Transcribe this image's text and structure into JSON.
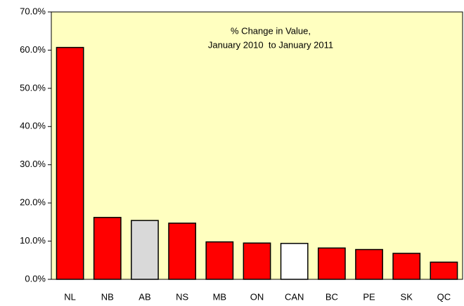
{
  "chart_data": {
    "type": "bar",
    "title": [
      "% Change in Value,",
      "January 2010  to January 2011"
    ],
    "categories": [
      "NL",
      "NB",
      "AB",
      "NS",
      "MB",
      "ON",
      "CAN",
      "BC",
      "PE",
      "SK",
      "QC"
    ],
    "values": [
      60.7,
      16.2,
      15.4,
      14.7,
      9.8,
      9.5,
      9.4,
      8.2,
      7.8,
      6.8,
      4.5
    ],
    "colors": [
      "#ff0000",
      "#ff0000",
      "#d9d9d9",
      "#ff0000",
      "#ff0000",
      "#ff0000",
      "#ffffff",
      "#ff0000",
      "#ff0000",
      "#ff0000",
      "#ff0000"
    ],
    "plot_background": "#ffffc0",
    "ylim": [
      0,
      70
    ],
    "yticks": [
      {
        "value": 0,
        "label": "0.0%"
      },
      {
        "value": 10,
        "label": "10.0%"
      },
      {
        "value": 20,
        "label": "20.0%"
      },
      {
        "value": 30,
        "label": "30.0%"
      },
      {
        "value": 40,
        "label": "40.0%"
      },
      {
        "value": 50,
        "label": "50.0%"
      },
      {
        "value": 60,
        "label": "60.0%"
      },
      {
        "value": 70,
        "label": "70.0%"
      }
    ],
    "grid": false
  }
}
